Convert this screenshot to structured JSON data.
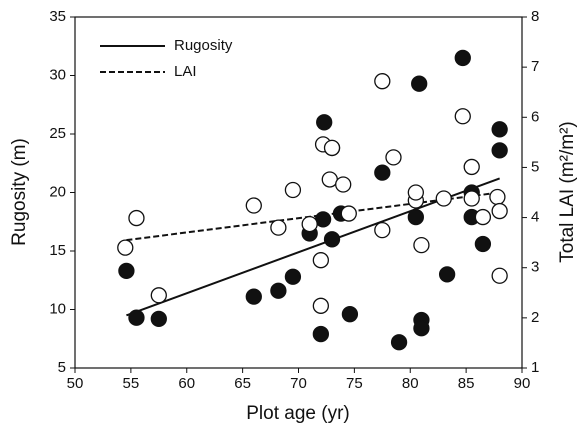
{
  "chart_data": {
    "type": "scatter",
    "x_label": "Plot age (yr)",
    "y_label": "Rugosity (m)",
    "y2_label": "Total LAI (m²/m²)",
    "xlim": [
      50,
      90
    ],
    "xticks": [
      50,
      55,
      60,
      65,
      70,
      75,
      80,
      85,
      90
    ],
    "ylim": [
      5,
      35
    ],
    "yticks": [
      5,
      10,
      15,
      20,
      25,
      30,
      35
    ],
    "y2lim": [
      1,
      8
    ],
    "y2ticks": [
      1,
      2,
      3,
      4,
      5,
      6,
      7,
      8
    ],
    "legend": "upper left",
    "points": [
      {
        "marker": "filled",
        "color": "#111111",
        "x": [
          54.6,
          55.5,
          57.5,
          66,
          68.2,
          69.5,
          71,
          72,
          72.2,
          72.3,
          73,
          73,
          73.8,
          74.6,
          77.5,
          79,
          80.5,
          80.8,
          81,
          81,
          83.3,
          84.7,
          85.5,
          86.5,
          85.5,
          88,
          88
        ],
        "values": [
          13.3,
          9.3,
          9.2,
          11.1,
          11.6,
          12.8,
          16.5,
          7.9,
          17.7,
          26,
          16,
          23.8,
          18.2,
          9.6,
          21.7,
          7.2,
          17.9,
          29.3,
          9.1,
          8.4,
          13,
          31.5,
          17.9,
          15.6,
          20,
          25.4,
          23.6
        ]
      },
      {
        "marker": "open",
        "color": "#111111",
        "axis": "y2",
        "x": [
          54.5,
          55.5,
          57.5,
          66,
          68.2,
          69.5,
          71,
          72,
          72,
          72.2,
          72.8,
          73,
          74,
          74.5,
          77.5,
          77.5,
          78.5,
          80.5,
          80.5,
          81,
          83,
          84.7,
          85.5,
          85.5,
          86.5,
          87.8,
          88,
          88
        ],
        "values": [
          3.4,
          3.99,
          2.45,
          4.24,
          3.8,
          4.55,
          3.87,
          3.15,
          2.24,
          5.46,
          4.76,
          5.39,
          4.66,
          4.08,
          6.72,
          3.75,
          5.2,
          4.34,
          4.5,
          3.45,
          4.38,
          6.02,
          5.01,
          4.38,
          4.01,
          4.41,
          4.13,
          2.84
        ]
      }
    ],
    "series": [
      {
        "name": "Rugosity",
        "color": "#111111",
        "dash": false,
        "x": [
          54.6,
          88
        ],
        "values": [
          9.5,
          21.2
        ]
      },
      {
        "name": "LAI",
        "color": "#111111",
        "dash": true,
        "axis": "y2",
        "x": [
          54.6,
          88
        ],
        "values": [
          3.55,
          4.5
        ]
      }
    ]
  }
}
